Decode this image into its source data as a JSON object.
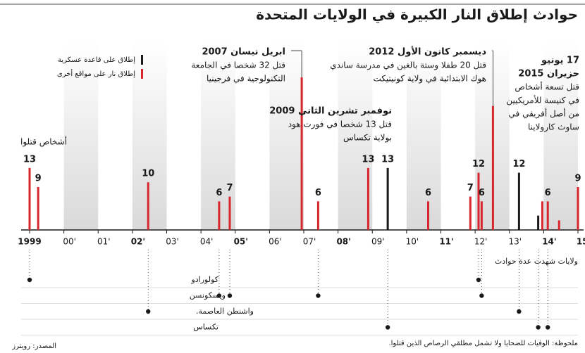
{
  "chart_data": {
    "type": "bar",
    "title": "حوادث إطلاق النار الكبيرة في الولايات المتحدة",
    "y_label": "أشخاص قتلوا",
    "xlim": [
      1999,
      2015
    ],
    "ylim": [
      0,
      32
    ],
    "xticks": [
      {
        "value": 1999,
        "label": "1999"
      },
      {
        "value": 2000,
        "label": "00'"
      },
      {
        "value": 2001,
        "label": "01'"
      },
      {
        "value": 2002,
        "label": "02'"
      },
      {
        "value": 2003,
        "label": "03'"
      },
      {
        "value": 2004,
        "label": "04'"
      },
      {
        "value": 2005,
        "label": "05'"
      },
      {
        "value": 2006,
        "label": "06'"
      },
      {
        "value": 2007,
        "label": "07'"
      },
      {
        "value": 2008,
        "label": "08'"
      },
      {
        "value": 2009,
        "label": "09'"
      },
      {
        "value": 2010,
        "label": "10'"
      },
      {
        "value": 2011,
        "label": "11'"
      },
      {
        "value": 2012,
        "label": "12'"
      },
      {
        "value": 2013,
        "label": "13'"
      },
      {
        "value": 2014,
        "label": "14'"
      },
      {
        "value": 2015,
        "label": "15'"
      }
    ],
    "series": [
      {
        "name": "إطلاق على قاعدة عسكرية",
        "color": "#1a1a1a",
        "x": [
          2009.45,
          2013.28,
          2013.84
        ],
        "values": [
          13,
          12,
          3
        ],
        "value_labels": [
          "13",
          "12",
          null
        ]
      },
      {
        "name": "إطلاق نار على مواقع أخرى",
        "color": "#d7262e",
        "x": [
          1999.0,
          1999.25,
          2002.46,
          2004.53,
          2004.84,
          2006.94,
          2007.42,
          2008.88,
          2010.63,
          2011.86,
          2012.1,
          2012.19,
          2012.52,
          2013.96,
          2014.12,
          2014.45,
          2015.0
        ],
        "values": [
          13,
          9,
          10,
          6,
          7,
          32,
          6,
          13,
          6,
          7,
          12,
          6,
          26,
          6,
          6,
          2,
          9
        ],
        "value_labels": [
          "13",
          "9",
          "10",
          "6",
          "7",
          null,
          "6",
          "13",
          "6",
          "7",
          "12",
          "6",
          null,
          null,
          "6",
          null,
          "9"
        ]
      }
    ],
    "annotations": [
      {
        "lines": [
          "ابريل نيسان 2007",
          "قتل 32 شخصا في الجامعة",
          "التكنولوجية في فرجينيا"
        ]
      },
      {
        "lines": [
          "نوفمبر تشرين الثاني 2009",
          "قتل 13 شخصا في فورت هود",
          "بولاية تكساس"
        ]
      },
      {
        "lines": [
          "ديسمبر كانون الأول 2012",
          "قتل 20 طفلا وستة بالغين في مدرسة ساندي",
          "هوك الابتدائية في ولاية كونيتيكت"
        ]
      },
      {
        "lines": [
          "17 يونيو",
          "حزيران 2015",
          "قتل تسعة أشخاص",
          "في كنيسة للأمريكيين",
          "من أصل أفريقي في",
          "ساوث كارولاينا"
        ]
      }
    ],
    "states_title": "ولايات شهدت عدة حوادث",
    "states": [
      {
        "name": "كولورادو",
        "years": [
          1999.0,
          2012.1
        ]
      },
      {
        "name": "ويسكونسن",
        "years": [
          2004.53,
          2004.84,
          2007.42,
          2012.19
        ]
      },
      {
        "name": "واشنطن العاصمة.",
        "years": [
          2002.46,
          2013.28
        ]
      },
      {
        "name": "تكساس",
        "years": [
          2009.45,
          2013.84,
          2014.12
        ]
      }
    ],
    "note": "ملحوظة: الوفيات للضحايا ولا تشمل مطلقي الرصاص الذين قتلوا.",
    "source": "المصدر: رويترز"
  }
}
